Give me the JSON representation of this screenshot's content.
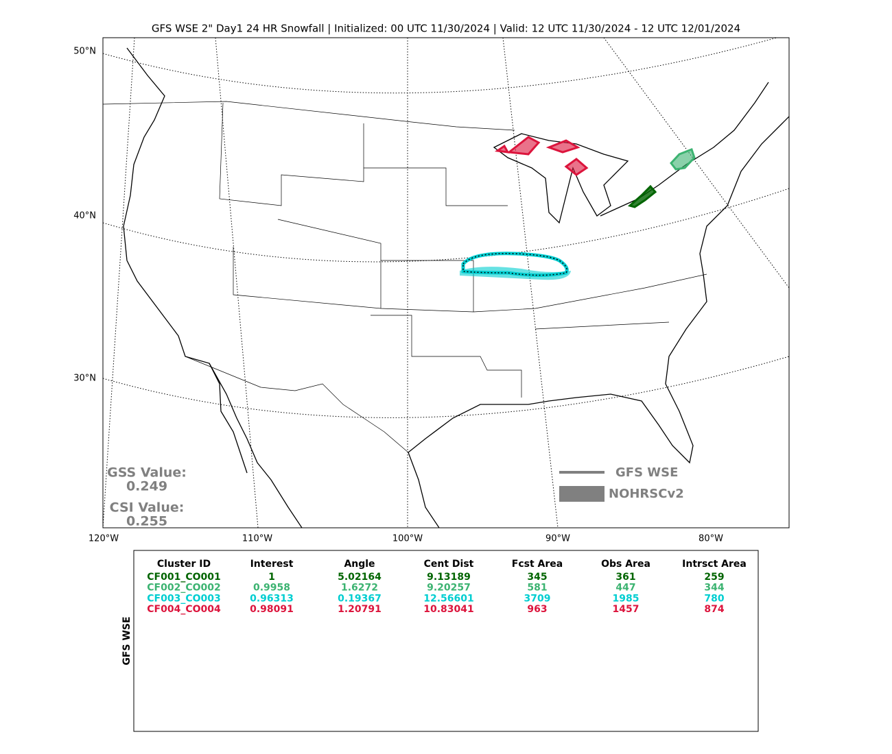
{
  "title": "GFS WSE 2\" Day1 24 HR Snowfall | Initialized: 00 UTC 11/30/2024 | Valid: 12 UTC 11/30/2024 - 12 UTC 12/01/2024",
  "map": {
    "lat_labels": [
      "50°N",
      "40°N",
      "30°N"
    ],
    "lon_labels": [
      "120°W",
      "110°W",
      "100°W",
      "90°W",
      "80°W"
    ]
  },
  "stats": {
    "gss_label": "GSS Value:",
    "gss_value": 0.249,
    "csi_label": "CSI Value:",
    "csi_value": 0.255
  },
  "legend": [
    "GFS WSE",
    "NOHRSCv2"
  ],
  "table": {
    "side_label": "GFS WSE",
    "columns": [
      "Cluster ID",
      "Interest",
      "Angle",
      "Cent Dist",
      "Fcst Area",
      "Obs Area",
      "Intrsct Area"
    ],
    "rows": [
      {
        "color": "#006400",
        "cells": [
          "CF001_CO001",
          1,
          5.02164,
          9.13189,
          345,
          361,
          259
        ]
      },
      {
        "color": "#3cb371",
        "cells": [
          "CF002_CO002",
          0.9958,
          1.6272,
          9.20257,
          581,
          447,
          344
        ]
      },
      {
        "color": "#00ced1",
        "cells": [
          "CF003_CO003",
          0.96313,
          0.19367,
          12.56601,
          3709,
          1985,
          780
        ]
      },
      {
        "color": "#dc143c",
        "cells": [
          "CF004_CO004",
          0.98091,
          1.20791,
          10.83041,
          963,
          1457,
          874
        ]
      }
    ]
  }
}
